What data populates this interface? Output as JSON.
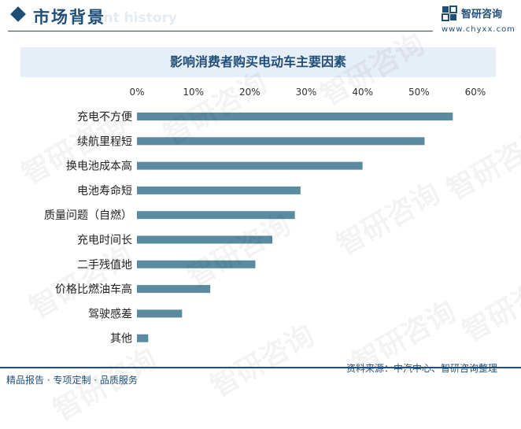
{
  "header": {
    "section_title": "市场背景",
    "ghost_text": "ent history",
    "brand_name": "智研咨询",
    "brand_url": "www.chyxx.com"
  },
  "watermark": {
    "text": "智研咨询"
  },
  "footer": {
    "left_text": "精品报告 · 专项定制 · 品质服务",
    "source_text": "资料来源：中汽中心、智研咨询整理"
  },
  "colors": {
    "bar": "#5b8ba0",
    "brand": "#1f4e79",
    "title_band": "#e6eef7"
  },
  "chart_data": {
    "type": "bar",
    "orientation": "horizontal",
    "title": "影响消费者购买电动车主要因素",
    "categories": [
      "充电不方便",
      "续航里程短",
      "换电池成本高",
      "电池寿命短",
      "质量问题（自燃）",
      "充电时间长",
      "二手残值地",
      "价格比燃油车高",
      "驾驶感差",
      "其他"
    ],
    "values": [
      56,
      51,
      40,
      29,
      28,
      24,
      21,
      13,
      8,
      2
    ],
    "value_unit": "%",
    "xlim": [
      0,
      60
    ],
    "ticks": [
      0,
      10,
      20,
      30,
      40,
      50,
      60
    ],
    "tick_labels": [
      "0%",
      "10%",
      "20%",
      "30%",
      "40%",
      "50%",
      "60%"
    ],
    "axis_position": "top",
    "grid": false,
    "legend": "none"
  }
}
